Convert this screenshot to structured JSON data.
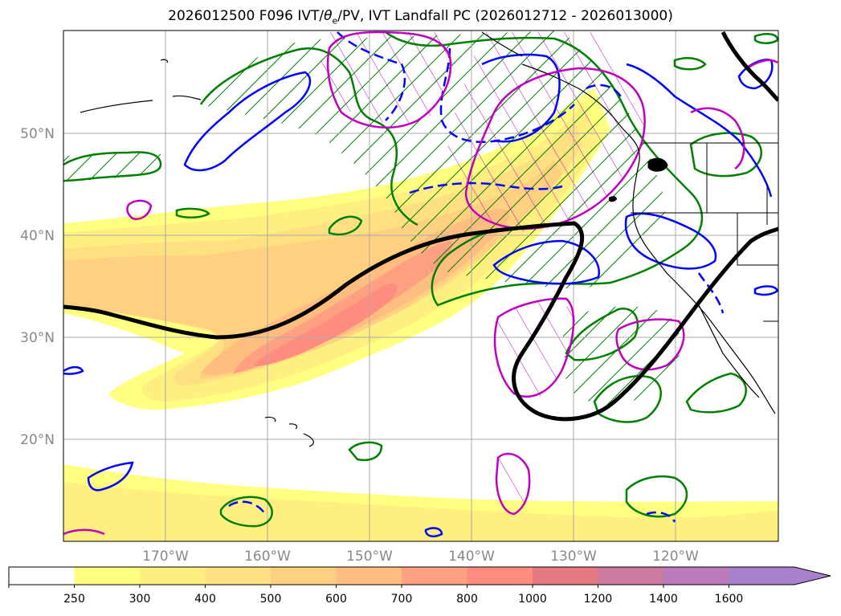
{
  "title": {
    "prefix": "2026012500 F096 IVT/",
    "theta": "θ",
    "theta_sub": "e",
    "suffix": "/PV, IVT Landfall PC (2026012712 - 2026013000)"
  },
  "axes": {
    "lat_ticks": [
      {
        "value": 20,
        "label": "20°N"
      },
      {
        "value": 30,
        "label": "30°N"
      },
      {
        "value": 40,
        "label": "40°N"
      },
      {
        "value": 50,
        "label": "50°N"
      }
    ],
    "lon_ticks": [
      {
        "value": -170,
        "label": "170°W"
      },
      {
        "value": -160,
        "label": "160°W"
      },
      {
        "value": -150,
        "label": "150°W"
      },
      {
        "value": -140,
        "label": "140°W"
      },
      {
        "value": -130,
        "label": "130°W"
      },
      {
        "value": -120,
        "label": "120°W"
      }
    ],
    "grid": true
  },
  "colorbar": {
    "levels": [
      "250",
      "300",
      "400",
      "500",
      "600",
      "700",
      "800",
      "1000",
      "1200",
      "1400",
      "1600"
    ],
    "colors": [
      "#ffffff",
      "#ffff80",
      "#ffee80",
      "#ffe080",
      "#ffd080",
      "#ffbd80",
      "#ffa080",
      "#ff8c80",
      "#e47880",
      "#cc7aa0",
      "#bc7cbc",
      "#a880cc"
    ],
    "extend": "max"
  },
  "colors": {
    "ivt_low": "#ffff80",
    "ivt_mid": "#ffd080",
    "ivt_high": "#ff8c80",
    "green_contour": "#008000",
    "blue_contour": "#0000ff",
    "magenta_contour": "#c000c0",
    "black_contour": "#000000",
    "grid": "#aaaaaa"
  }
}
